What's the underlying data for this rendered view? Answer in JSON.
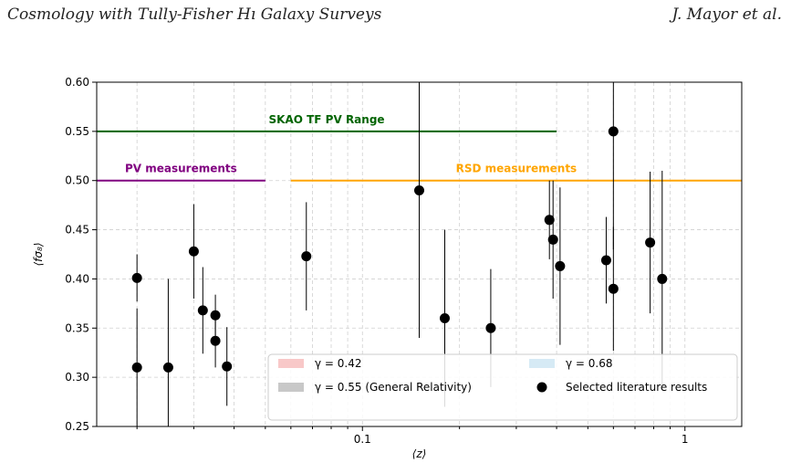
{
  "header": {
    "title": "Cosmology with Tully-Fisher Hı Galaxy Surveys",
    "authors": "J. Mayor et al."
  },
  "chart_data": {
    "type": "scatter",
    "xscale": "log",
    "xlabel": "⟨z⟩",
    "ylabel": "⟨fσ₈⟩",
    "xlim": [
      0.015,
      1.5
    ],
    "ylim": [
      0.25,
      0.6
    ],
    "grid": true,
    "x_ticks": [
      0.1,
      1
    ],
    "x_tick_labels": [
      "0.1",
      "1"
    ],
    "y_ticks": [
      0.25,
      0.3,
      0.35,
      0.4,
      0.45,
      0.5,
      0.55,
      0.6
    ],
    "y_tick_labels": [
      "0.25",
      "0.30",
      "0.35",
      "0.40",
      "0.45",
      "0.50",
      "0.55",
      "0.60"
    ],
    "ranges": [
      {
        "label": "SKAO TF PV Range",
        "y": 0.55,
        "x": [
          0.015,
          0.4
        ],
        "color": "#006400"
      },
      {
        "label": "PV measurements",
        "y": 0.5,
        "x": [
          0.015,
          0.05
        ],
        "color": "#800080"
      },
      {
        "label": "RSD measurements",
        "y": 0.5,
        "x": [
          0.06,
          1.5
        ],
        "color": "#FFA500"
      }
    ],
    "points": [
      {
        "x": 0.02,
        "y": 0.401,
        "err": 0.024
      },
      {
        "x": 0.02,
        "y": 0.31,
        "err": 0.06
      },
      {
        "x": 0.025,
        "y": 0.31,
        "err": 0.09
      },
      {
        "x": 0.03,
        "y": 0.428,
        "err": 0.048
      },
      {
        "x": 0.032,
        "y": 0.368,
        "err": 0.044
      },
      {
        "x": 0.035,
        "y": 0.363,
        "err": 0.021
      },
      {
        "x": 0.035,
        "y": 0.337,
        "err": 0.027
      },
      {
        "x": 0.038,
        "y": 0.311,
        "err": 0.04
      },
      {
        "x": 0.067,
        "y": 0.423,
        "err": 0.055
      },
      {
        "x": 0.15,
        "y": 0.49,
        "err": 0.15
      },
      {
        "x": 0.18,
        "y": 0.36,
        "err": 0.09
      },
      {
        "x": 0.25,
        "y": 0.35,
        "err": 0.06
      },
      {
        "x": 0.38,
        "y": 0.46,
        "err": 0.04
      },
      {
        "x": 0.39,
        "y": 0.44,
        "err": 0.06
      },
      {
        "x": 0.41,
        "y": 0.413,
        "err": 0.08
      },
      {
        "x": 0.57,
        "y": 0.419,
        "err": 0.044
      },
      {
        "x": 0.6,
        "y": 0.55,
        "err": 0.12
      },
      {
        "x": 0.6,
        "y": 0.39,
        "err": 0.063
      },
      {
        "x": 0.78,
        "y": 0.437,
        "err": 0.072
      },
      {
        "x": 0.85,
        "y": 0.4,
        "err": 0.11
      }
    ],
    "legend": {
      "placement": "lower right",
      "entries": [
        {
          "label": "γ = 0.42",
          "color": "#f8c8c8",
          "kind": "patch"
        },
        {
          "label": "γ = 0.68",
          "color": "#d6eaf5",
          "kind": "patch"
        },
        {
          "label": "γ = 0.55 (General Relativity)",
          "color": "#c8c8c8",
          "kind": "patch"
        },
        {
          "label": "Selected literature results",
          "color": "#000000",
          "kind": "marker"
        }
      ]
    }
  }
}
